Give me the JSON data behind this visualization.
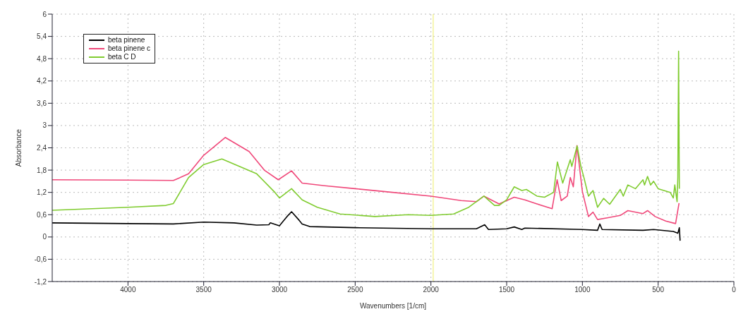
{
  "chart_data": {
    "type": "line",
    "xlabel": "Wavenumbers [1/cm]",
    "ylabel": "Absorbance",
    "xlim": [
      4500,
      0
    ],
    "xticks": [
      4000,
      3500,
      3000,
      2500,
      2000,
      1500,
      1000,
      500,
      0
    ],
    "ylim": [
      -1.2,
      6
    ],
    "yticks": [
      {
        "value": -1.2,
        "label": "-1,2"
      },
      {
        "value": -0.6,
        "label": "-0,6"
      },
      0,
      {
        "value": 0.6,
        "label": "0,6"
      },
      {
        "value": 1.2,
        "label": "1,2"
      },
      {
        "value": 1.8,
        "label": "1,8"
      },
      {
        "value": 2.4,
        "label": "2,4"
      },
      3,
      {
        "value": 3.6,
        "label": "3,6"
      },
      {
        "value": 4.2,
        "label": "4,2"
      },
      {
        "value": 4.8,
        "label": "4,8"
      },
      {
        "value": 5.4,
        "label": "5,4"
      },
      6
    ],
    "grid": true,
    "legend": "top left",
    "marker": "none",
    "line_style": "solid",
    "ref_lines": [
      {
        "axis": "x",
        "value": 1985,
        "color": "#f0f080"
      }
    ],
    "series": [
      {
        "name": "beta pinene",
        "color": "#000000",
        "x": [
          4500,
          4000,
          3700,
          3500,
          3300,
          3150,
          3070,
          3060,
          3000,
          2960,
          2950,
          2920,
          2870,
          2850,
          2800,
          2500,
          2000,
          1700,
          1645,
          1620,
          1500,
          1450,
          1400,
          1380,
          1000,
          900,
          885,
          870,
          600,
          530,
          400,
          370,
          360,
          355
        ],
        "values": [
          0.38,
          0.36,
          0.35,
          0.4,
          0.38,
          0.32,
          0.33,
          0.38,
          0.3,
          0.5,
          0.55,
          0.68,
          0.45,
          0.35,
          0.28,
          0.25,
          0.22,
          0.22,
          0.33,
          0.2,
          0.22,
          0.27,
          0.2,
          0.24,
          0.2,
          0.18,
          0.35,
          0.2,
          0.18,
          0.2,
          0.15,
          0.1,
          0.25,
          -0.1
        ]
      },
      {
        "name": "beta pinene c",
        "color": "#f0487a",
        "x": [
          4500,
          4000,
          3700,
          3600,
          3500,
          3358,
          3200,
          3100,
          3008,
          2920,
          2850,
          2700,
          2500,
          2300,
          2000,
          1800,
          1700,
          1650,
          1550,
          1450,
          1380,
          1300,
          1200,
          1167,
          1140,
          1100,
          1080,
          1060,
          1036,
          1000,
          960,
          930,
          900,
          830,
          750,
          700,
          600,
          570,
          520,
          450,
          385,
          362
        ],
        "values": [
          1.54,
          1.53,
          1.52,
          1.7,
          2.2,
          2.68,
          2.3,
          1.8,
          1.54,
          1.78,
          1.45,
          1.38,
          1.3,
          1.22,
          1.1,
          0.98,
          0.95,
          1.1,
          0.89,
          1.07,
          1.0,
          0.89,
          0.76,
          1.54,
          0.98,
          1.1,
          1.6,
          1.35,
          2.46,
          1.22,
          0.55,
          0.67,
          0.47,
          0.52,
          0.58,
          0.71,
          0.63,
          0.71,
          0.55,
          0.43,
          0.36,
          0.91
        ]
      },
      {
        "name": "beta C D",
        "color": "#80cc30",
        "x": [
          4500,
          4000,
          3750,
          3700,
          3600,
          3500,
          3380,
          3150,
          3030,
          3000,
          2920,
          2850,
          2750,
          2600,
          2370,
          2150,
          2000,
          1850,
          1750,
          1650,
          1580,
          1550,
          1500,
          1450,
          1400,
          1370,
          1300,
          1250,
          1190,
          1165,
          1130,
          1080,
          1070,
          1035,
          1010,
          990,
          960,
          930,
          900,
          860,
          820,
          750,
          730,
          700,
          650,
          600,
          590,
          570,
          550,
          530,
          500,
          420,
          400,
          390,
          375,
          370,
          365,
          360
        ],
        "values": [
          0.72,
          0.8,
          0.85,
          0.9,
          1.6,
          1.95,
          2.1,
          1.7,
          1.2,
          1.05,
          1.3,
          1.0,
          0.8,
          0.62,
          0.55,
          0.6,
          0.58,
          0.62,
          0.8,
          1.1,
          0.85,
          0.85,
          1.0,
          1.35,
          1.25,
          1.28,
          1.1,
          1.07,
          1.2,
          2.02,
          1.45,
          2.08,
          1.9,
          2.45,
          1.9,
          1.6,
          1.1,
          1.25,
          0.8,
          1.04,
          0.88,
          1.28,
          1.1,
          1.4,
          1.3,
          1.54,
          1.4,
          1.63,
          1.4,
          1.5,
          1.3,
          1.2,
          1.05,
          1.4,
          0.95,
          1.6,
          5.0,
          1.3
        ]
      }
    ]
  }
}
